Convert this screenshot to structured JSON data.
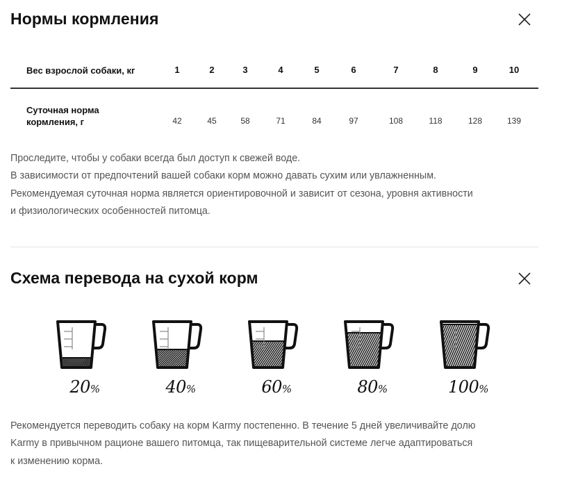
{
  "section1": {
    "title": "Нормы кормления",
    "table": {
      "header_label": "Вес взрослой собаки, кг",
      "weights": [
        "1",
        "2",
        "3",
        "4",
        "5",
        "6",
        "7",
        "8",
        "9",
        "10"
      ],
      "row_label_line1": "Суточная норма",
      "row_label_line2": "кормления, г",
      "amounts": [
        "42",
        "45",
        "58",
        "71",
        "84",
        "97",
        "108",
        "118",
        "128",
        "139"
      ]
    },
    "paragraph": [
      "Проследите, чтобы у собаки всегда был доступ к свежей воде.",
      "В зависимости от предпочтений вашей собаки корм можно давать сухим или увлажненным.",
      "Рекомендуемая суточная норма является ориентировочной и зависит от сезона, уровня активности",
      "и физиологических особенностей питомца."
    ]
  },
  "section2": {
    "title": "Схема перевода на сухой корм",
    "steps": [
      {
        "label": "20",
        "fill": 0.2
      },
      {
        "label": "40",
        "fill": 0.4
      },
      {
        "label": "60",
        "fill": 0.6
      },
      {
        "label": "80",
        "fill": 0.8
      },
      {
        "label": "100",
        "fill": 1.0
      }
    ],
    "percent_sign": "%",
    "paragraph": [
      "Рекомендуется переводить собаку на корм Karmy постепенно. В течение 5 дней увеличивайте долю",
      "Karmy в привычном рационе вашего питомца, так пищеварительной системе легче адаптироваться",
      "к изменению корма."
    ]
  },
  "icons": {
    "close": "close-icon",
    "cup": "measuring-cup-icon"
  }
}
